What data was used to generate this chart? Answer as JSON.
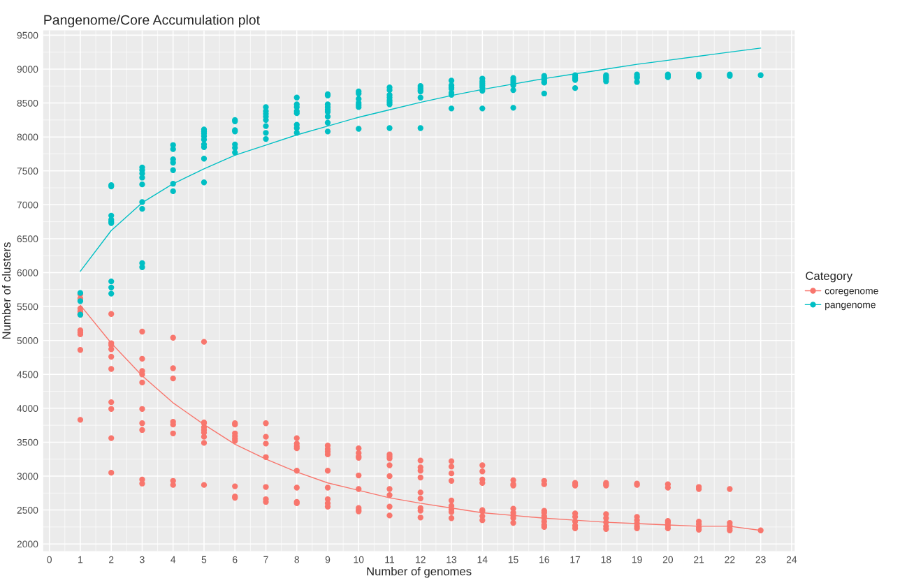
{
  "chart_data": {
    "type": "scatter",
    "title": "Pangenome/Core Accumulation plot",
    "xlabel": "Number of genomes",
    "ylabel": "Number of clusters",
    "legend_title": "Category",
    "legend": "right",
    "grid": true,
    "xlim": [
      -0.2,
      24.1
    ],
    "ylim": [
      1895,
      9570
    ],
    "xticks": [
      0,
      1,
      2,
      3,
      4,
      5,
      6,
      7,
      8,
      9,
      10,
      11,
      12,
      13,
      14,
      15,
      16,
      17,
      18,
      19,
      20,
      21,
      22,
      23,
      24
    ],
    "yticks": [
      2000,
      2500,
      3000,
      3500,
      4000,
      4500,
      5000,
      5500,
      6000,
      6500,
      7000,
      7500,
      8000,
      8500,
      9000,
      9500
    ],
    "series": [
      {
        "name": "coregenome",
        "color": "#f8766d",
        "marker": "circle",
        "x": [
          1,
          1,
          1,
          1,
          1,
          1,
          1,
          1,
          1,
          1,
          1,
          2,
          2,
          2,
          2,
          2,
          2,
          2,
          2,
          2,
          2,
          3,
          3,
          3,
          3,
          3,
          3,
          3,
          3,
          3,
          3,
          4,
          4,
          4,
          4,
          4,
          4,
          4,
          4,
          5,
          5,
          5,
          5,
          5,
          5,
          5,
          5,
          5,
          6,
          6,
          6,
          6,
          6,
          6,
          6,
          6,
          6,
          7,
          7,
          7,
          7,
          7,
          7,
          7,
          8,
          8,
          8,
          8,
          8,
          8,
          8,
          8,
          9,
          9,
          9,
          9,
          9,
          9,
          9,
          9,
          9,
          10,
          10,
          10,
          10,
          10,
          10,
          10,
          10,
          10,
          11,
          11,
          11,
          11,
          11,
          11,
          11,
          11,
          11,
          12,
          12,
          12,
          12,
          12,
          12,
          12,
          12,
          12,
          13,
          13,
          13,
          13,
          13,
          13,
          13,
          13,
          13,
          14,
          14,
          14,
          14,
          14,
          14,
          14,
          14,
          15,
          15,
          15,
          15,
          15,
          15,
          15,
          15,
          16,
          16,
          16,
          16,
          16,
          16,
          16,
          16,
          16,
          17,
          17,
          17,
          17,
          17,
          17,
          17,
          17,
          18,
          18,
          18,
          18,
          18,
          18,
          18,
          18,
          19,
          19,
          19,
          19,
          19,
          19,
          19,
          20,
          20,
          20,
          20,
          20,
          20,
          21,
          21,
          21,
          21,
          21,
          21,
          22,
          22,
          22,
          22,
          22,
          23
        ],
        "values": [
          5680,
          5620,
          5470,
          5430,
          5400,
          5380,
          5150,
          5120,
          5090,
          4860,
          3830,
          5390,
          4960,
          4930,
          4870,
          4760,
          4580,
          4090,
          3990,
          3560,
          3050,
          5130,
          4730,
          4550,
          4500,
          4380,
          3990,
          3780,
          3680,
          2950,
          2890,
          5040,
          4590,
          4440,
          3800,
          3760,
          3630,
          2930,
          2870,
          4980,
          3790,
          3780,
          3720,
          3680,
          3640,
          3580,
          3490,
          2870,
          3780,
          3760,
          3630,
          3590,
          3550,
          3520,
          2850,
          2700,
          2680,
          3780,
          3580,
          3480,
          3280,
          2840,
          2660,
          2620,
          3560,
          3480,
          3440,
          3410,
          3080,
          2830,
          2620,
          2600,
          3450,
          3400,
          3360,
          3320,
          3080,
          2830,
          2660,
          2600,
          2550,
          3410,
          3340,
          3290,
          3270,
          3010,
          2810,
          2530,
          2500,
          2480,
          3320,
          3290,
          3260,
          3160,
          3000,
          2810,
          2720,
          2550,
          2420,
          3230,
          3130,
          3080,
          2980,
          2760,
          2670,
          2530,
          2490,
          2390,
          3220,
          3140,
          3040,
          2930,
          2640,
          2560,
          2510,
          2470,
          2380,
          3160,
          3070,
          2950,
          2900,
          2500,
          2480,
          2410,
          2350,
          2940,
          2880,
          2860,
          2520,
          2460,
          2420,
          2380,
          2310,
          2930,
          2880,
          2490,
          2460,
          2410,
          2380,
          2330,
          2280,
          2250,
          2900,
          2880,
          2860,
          2450,
          2400,
          2330,
          2270,
          2230,
          2900,
          2880,
          2860,
          2440,
          2380,
          2320,
          2260,
          2220,
          2890,
          2870,
          2400,
          2350,
          2300,
          2260,
          2230,
          2880,
          2830,
          2340,
          2310,
          2270,
          2230,
          2840,
          2810,
          2330,
          2290,
          2240,
          2210,
          2810,
          2310,
          2270,
          2230,
          2200,
          2200
        ]
      },
      {
        "name": "pangenome",
        "color": "#00bfc4",
        "marker": "circle",
        "x": [
          1,
          1,
          1,
          2,
          2,
          2,
          2,
          2,
          2,
          2,
          2,
          2,
          3,
          3,
          3,
          3,
          3,
          3,
          3,
          3,
          3,
          4,
          4,
          4,
          4,
          4,
          4,
          4,
          5,
          5,
          5,
          5,
          5,
          5,
          5,
          5,
          5,
          6,
          6,
          6,
          6,
          6,
          6,
          6,
          7,
          7,
          7,
          7,
          7,
          7,
          7,
          7,
          8,
          8,
          8,
          8,
          8,
          8,
          8,
          8,
          9,
          9,
          9,
          9,
          9,
          9,
          9,
          9,
          9,
          10,
          10,
          10,
          10,
          10,
          10,
          10,
          11,
          11,
          11,
          11,
          11,
          11,
          11,
          11,
          12,
          12,
          12,
          12,
          12,
          12,
          13,
          13,
          13,
          13,
          13,
          13,
          13,
          14,
          14,
          14,
          14,
          14,
          14,
          14,
          15,
          15,
          15,
          15,
          15,
          15,
          15,
          16,
          16,
          16,
          16,
          16,
          16,
          17,
          17,
          17,
          17,
          17,
          18,
          18,
          18,
          18,
          18,
          19,
          19,
          19,
          19,
          20,
          20,
          20,
          21,
          21,
          21,
          22,
          22,
          23
        ],
        "values": [
          5700,
          5580,
          5380,
          7290,
          7270,
          6840,
          6780,
          6750,
          6730,
          5870,
          5780,
          5690,
          7550,
          7510,
          7460,
          7400,
          7300,
          7040,
          6940,
          6140,
          6080,
          7880,
          7820,
          7670,
          7620,
          7510,
          7310,
          7200,
          8110,
          8080,
          8050,
          8010,
          7960,
          7890,
          7850,
          7680,
          7330,
          8250,
          8230,
          8100,
          8080,
          7890,
          7840,
          7770,
          8440,
          8380,
          8340,
          8300,
          8250,
          8160,
          8060,
          7970,
          8580,
          8480,
          8440,
          8380,
          8350,
          8180,
          8130,
          8060,
          8630,
          8610,
          8480,
          8440,
          8400,
          8370,
          8300,
          8210,
          8080,
          8670,
          8640,
          8560,
          8500,
          8470,
          8440,
          8120,
          8730,
          8690,
          8620,
          8580,
          8540,
          8510,
          8480,
          8130,
          8750,
          8720,
          8690,
          8670,
          8580,
          8130,
          8830,
          8760,
          8730,
          8710,
          8650,
          8620,
          8420,
          8860,
          8820,
          8790,
          8760,
          8730,
          8680,
          8420,
          8870,
          8840,
          8810,
          8780,
          8760,
          8690,
          8430,
          8900,
          8870,
          8840,
          8810,
          8800,
          8640,
          8910,
          8880,
          8860,
          8840,
          8720,
          8910,
          8890,
          8870,
          8850,
          8820,
          8920,
          8890,
          8870,
          8810,
          8920,
          8900,
          8880,
          8920,
          8900,
          8890,
          8920,
          8900,
          8910
        ]
      },
      {
        "color": "#f8766d",
        "type": "line",
        "x": [
          1,
          2,
          3,
          4,
          5,
          6,
          7,
          8,
          9,
          10,
          11,
          12,
          13,
          14,
          15,
          16,
          17,
          18,
          19,
          20,
          21,
          22,
          23
        ],
        "values": [
          5520,
          4960,
          4480,
          4080,
          3760,
          3470,
          3250,
          3060,
          2900,
          2790,
          2680,
          2600,
          2530,
          2460,
          2420,
          2380,
          2350,
          2320,
          2300,
          2280,
          2260,
          2260,
          2200
        ]
      },
      {
        "color": "#00bfc4",
        "type": "line",
        "x": [
          1,
          2,
          3,
          4,
          5,
          6,
          7,
          8,
          9,
          10,
          11,
          12,
          13,
          14,
          15,
          16,
          17,
          18,
          19,
          20,
          21,
          22,
          23
        ],
        "values": [
          6020,
          6620,
          7030,
          7310,
          7530,
          7730,
          7880,
          8030,
          8160,
          8290,
          8400,
          8510,
          8610,
          8700,
          8780,
          8860,
          8930,
          9000,
          9070,
          9130,
          9190,
          9250,
          9310
        ]
      }
    ]
  }
}
